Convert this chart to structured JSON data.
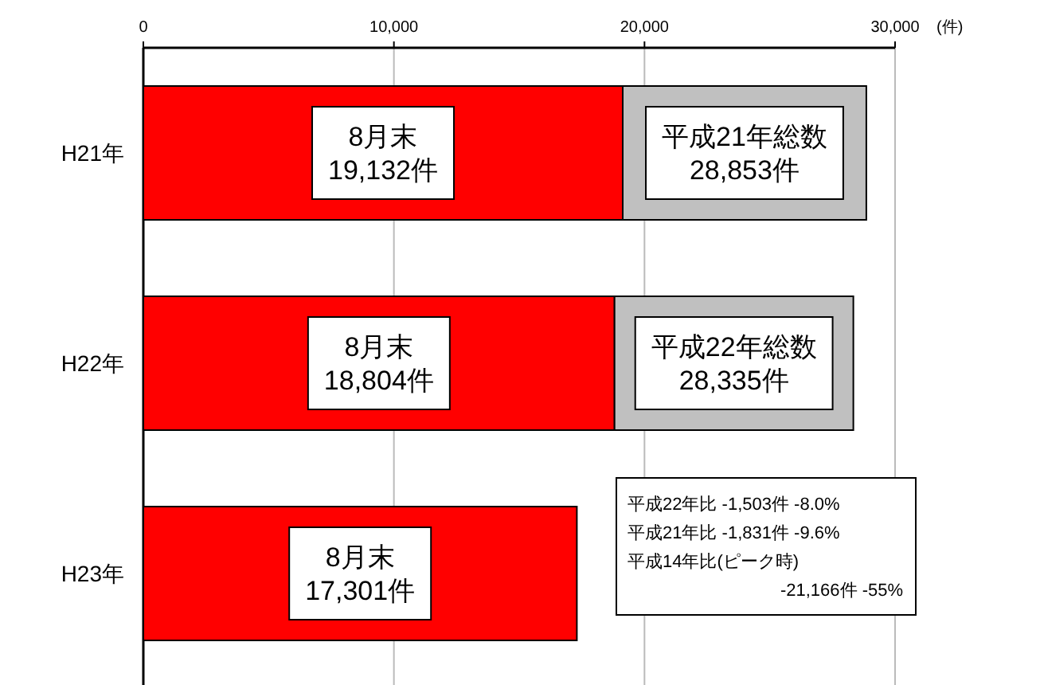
{
  "chart_data": {
    "type": "bar",
    "orientation": "horizontal",
    "stacked": true,
    "categories": [
      "H21年",
      "H22年",
      "H23年"
    ],
    "xlabel": "(件)",
    "xlim": [
      0,
      30000
    ],
    "xticks": [
      0,
      {
        "value": 10000,
        "label": "10,000"
      },
      {
        "value": 20000,
        "label": "20,000"
      },
      {
        "value": 30000,
        "label": "30,000"
      }
    ],
    "grid": "x",
    "series": [
      {
        "color": "#ff0000",
        "values": [
          19132,
          18804,
          17301
        ],
        "value_labels": [
          "8月末\n19,132件",
          "8月末\n18,804件",
          "8月末\n17,301件"
        ]
      },
      {
        "color": "#c0c0c0",
        "values": [
          9721,
          9531,
          null
        ],
        "value_labels": [
          "平成21年総数\n28,853件",
          "平成22年総数\n28,335件",
          null
        ]
      }
    ],
    "annotations": [
      "平成22年比 -1,503件 -8.0%\n平成21年比 -1,831件 -9.6%\n平成14年比(ピーク時)\n-21,166件 -55%"
    ]
  }
}
